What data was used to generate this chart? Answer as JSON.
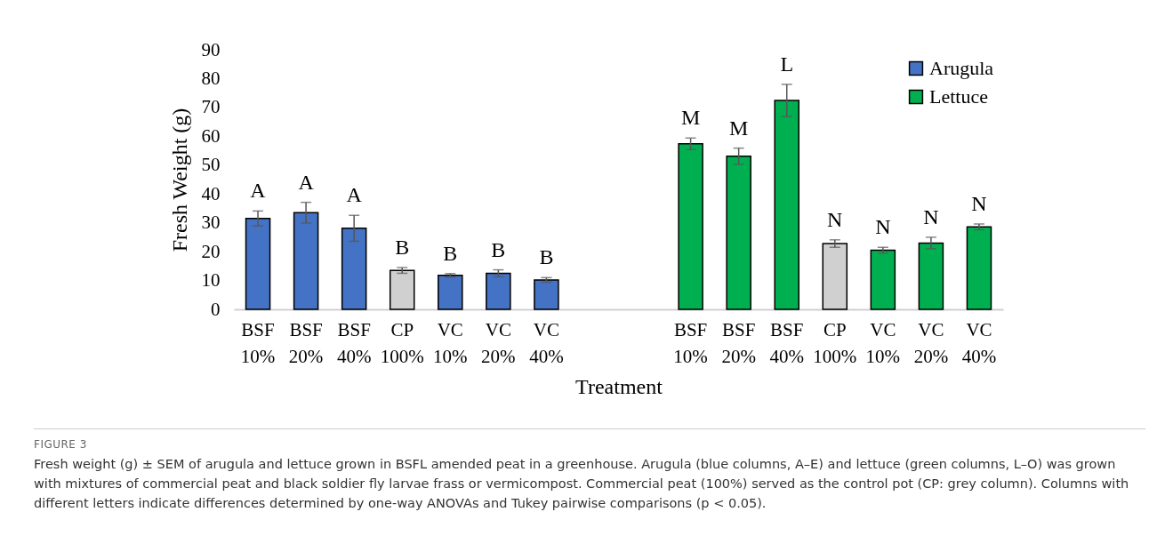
{
  "chart_data": {
    "type": "bar",
    "categories": [
      "BSF 10%",
      "BSF 20%",
      "BSF 40%",
      "CP 100%",
      "VC 10%",
      "VC 20%",
      "VC 40%",
      null,
      null,
      "BSF 10%",
      "BSF 20%",
      "BSF 40%",
      "CP 100%",
      "VC 10%",
      "VC 20%",
      "VC 40%"
    ],
    "series": [
      {
        "name": "Arugula",
        "color": "#4472c4",
        "values": [
          31.5,
          33.5,
          28.1,
          13.5,
          11.8,
          12.5,
          10.2,
          null,
          null,
          null,
          null,
          null,
          null,
          null,
          null,
          null
        ],
        "colors": [
          "#4472c4",
          "#4472c4",
          "#4472c4",
          "#d0d0d0",
          "#4472c4",
          "#4472c4",
          "#4472c4",
          null,
          null,
          null,
          null,
          null,
          null,
          null,
          null,
          null
        ],
        "errors": [
          2.6,
          3.6,
          4.5,
          1.0,
          0.6,
          1.2,
          0.8,
          null,
          null,
          null,
          null,
          null,
          null,
          null,
          null,
          null
        ],
        "value_labels": [
          "A",
          "A",
          "A",
          "B",
          "B",
          "B",
          "B",
          null,
          null,
          null,
          null,
          null,
          null,
          null,
          null,
          null
        ]
      },
      {
        "name": "Lettuce",
        "color": "#00b050",
        "values": [
          null,
          null,
          null,
          null,
          null,
          null,
          null,
          null,
          null,
          57.4,
          53.1,
          72.4,
          22.8,
          20.5,
          23.0,
          28.6
        ],
        "colors": [
          null,
          null,
          null,
          null,
          null,
          null,
          null,
          null,
          null,
          "#00b050",
          "#00b050",
          "#00b050",
          "#d0d0d0",
          "#00b050",
          "#00b050",
          "#00b050"
        ],
        "errors": [
          null,
          null,
          null,
          null,
          null,
          null,
          null,
          null,
          null,
          2.0,
          2.8,
          5.6,
          1.3,
          1.0,
          2.0,
          1.0
        ],
        "value_labels": [
          null,
          null,
          null,
          null,
          null,
          null,
          null,
          null,
          null,
          "M",
          "M",
          "L",
          "N",
          "N",
          "N",
          "N"
        ]
      }
    ],
    "xlabel": "Treatment",
    "ylabel": "Fresh Weight (g)",
    "ylim": [
      0,
      90
    ],
    "yticks": [
      0,
      10,
      20,
      30,
      40,
      50,
      60,
      70,
      80,
      90
    ],
    "legend": "top right",
    "annotations": [
      "FIGURE 3",
      "Fresh weight (g) ± SEM of arugula and lettuce grown in BSFL amended peat in a greenhouse. Arugula (blue columns, A–E) and lettuce (green columns, L–O) was grown with mixtures of commercial peat and black soldier fly larvae frass or vermicompost. Commercial peat (100%) served as the control pot (CP: grey column). Columns with different letters indicate differences determined by one-way ANOVAs and Tukey pairwise comparisons (p < 0.05)."
    ]
  }
}
